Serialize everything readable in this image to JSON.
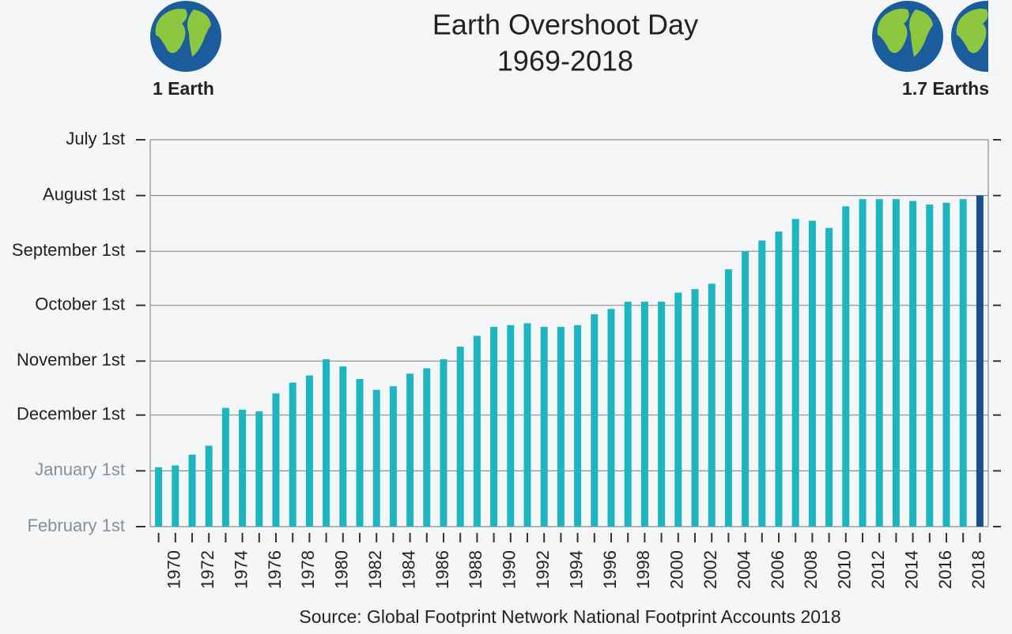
{
  "chart_data": {
    "type": "bar",
    "title": "Earth Overshoot Day",
    "subtitle": "1969-2018",
    "annotations": [
      "1 Earth",
      "1.7 Earths"
    ],
    "source": "Source: Global Footprint Network National Footprint Accounts 2018",
    "categories": [
      null,
      "1970",
      null,
      "1972",
      null,
      "1974",
      null,
      "1976",
      null,
      "1978",
      null,
      "1980",
      null,
      "1982",
      null,
      "1984",
      null,
      "1986",
      null,
      "1988",
      null,
      "1990",
      null,
      "1992",
      null,
      "1994",
      null,
      "1996",
      null,
      "1998",
      null,
      "2000",
      null,
      "2002",
      null,
      "2004",
      null,
      "2006",
      null,
      "2008",
      null,
      "2010",
      null,
      "2012",
      null,
      "2014",
      null,
      "2016",
      null,
      "2018"
    ],
    "values": [
      364,
      363,
      357,
      352,
      331,
      332,
      333,
      323,
      317,
      313,
      304,
      308,
      315,
      321,
      319,
      312,
      309,
      304,
      297,
      291,
      286,
      285,
      284,
      286,
      286,
      285,
      279,
      276,
      272,
      272,
      272,
      267,
      265,
      262,
      254,
      244,
      238,
      233,
      226,
      227,
      231,
      219,
      215,
      215,
      215,
      216,
      218,
      217,
      215,
      213
    ],
    "colors": [
      "#1cb5c0",
      "#1cb5c0",
      "#1cb5c0",
      "#1cb5c0",
      "#1cb5c0",
      "#1cb5c0",
      "#1cb5c0",
      "#1cb5c0",
      "#1cb5c0",
      "#1cb5c0",
      "#1cb5c0",
      "#1cb5c0",
      "#1cb5c0",
      "#1cb5c0",
      "#1cb5c0",
      "#1cb5c0",
      "#1cb5c0",
      "#1cb5c0",
      "#1cb5c0",
      "#1cb5c0",
      "#1cb5c0",
      "#1cb5c0",
      "#1cb5c0",
      "#1cb5c0",
      "#1cb5c0",
      "#1cb5c0",
      "#1cb5c0",
      "#1cb5c0",
      "#1cb5c0",
      "#1cb5c0",
      "#1cb5c0",
      "#1cb5c0",
      "#1cb5c0",
      "#1cb5c0",
      "#1cb5c0",
      "#1cb5c0",
      "#1cb5c0",
      "#1cb5c0",
      "#1cb5c0",
      "#1cb5c0",
      "#1cb5c0",
      "#1cb5c0",
      "#1cb5c0",
      "#1cb5c0",
      "#1cb5c0",
      "#1cb5c0",
      "#1cb5c0",
      "#1cb5c0",
      "#1cb5c0",
      "#1b4f8c"
    ],
    "ylim": [
      397,
      182
    ],
    "yticks": [
      {
        "value": 182,
        "label": "July 1st"
      },
      {
        "value": 213,
        "label": "August 1st"
      },
      {
        "value": 244,
        "label": "September 1st"
      },
      {
        "value": 274,
        "label": "October 1st"
      },
      {
        "value": 305,
        "label": "November 1st"
      },
      {
        "value": 335,
        "label": "December 1st"
      },
      {
        "value": 366,
        "label": "January 1st"
      },
      {
        "value": 397,
        "label": "February 1st"
      }
    ],
    "grid": true
  }
}
